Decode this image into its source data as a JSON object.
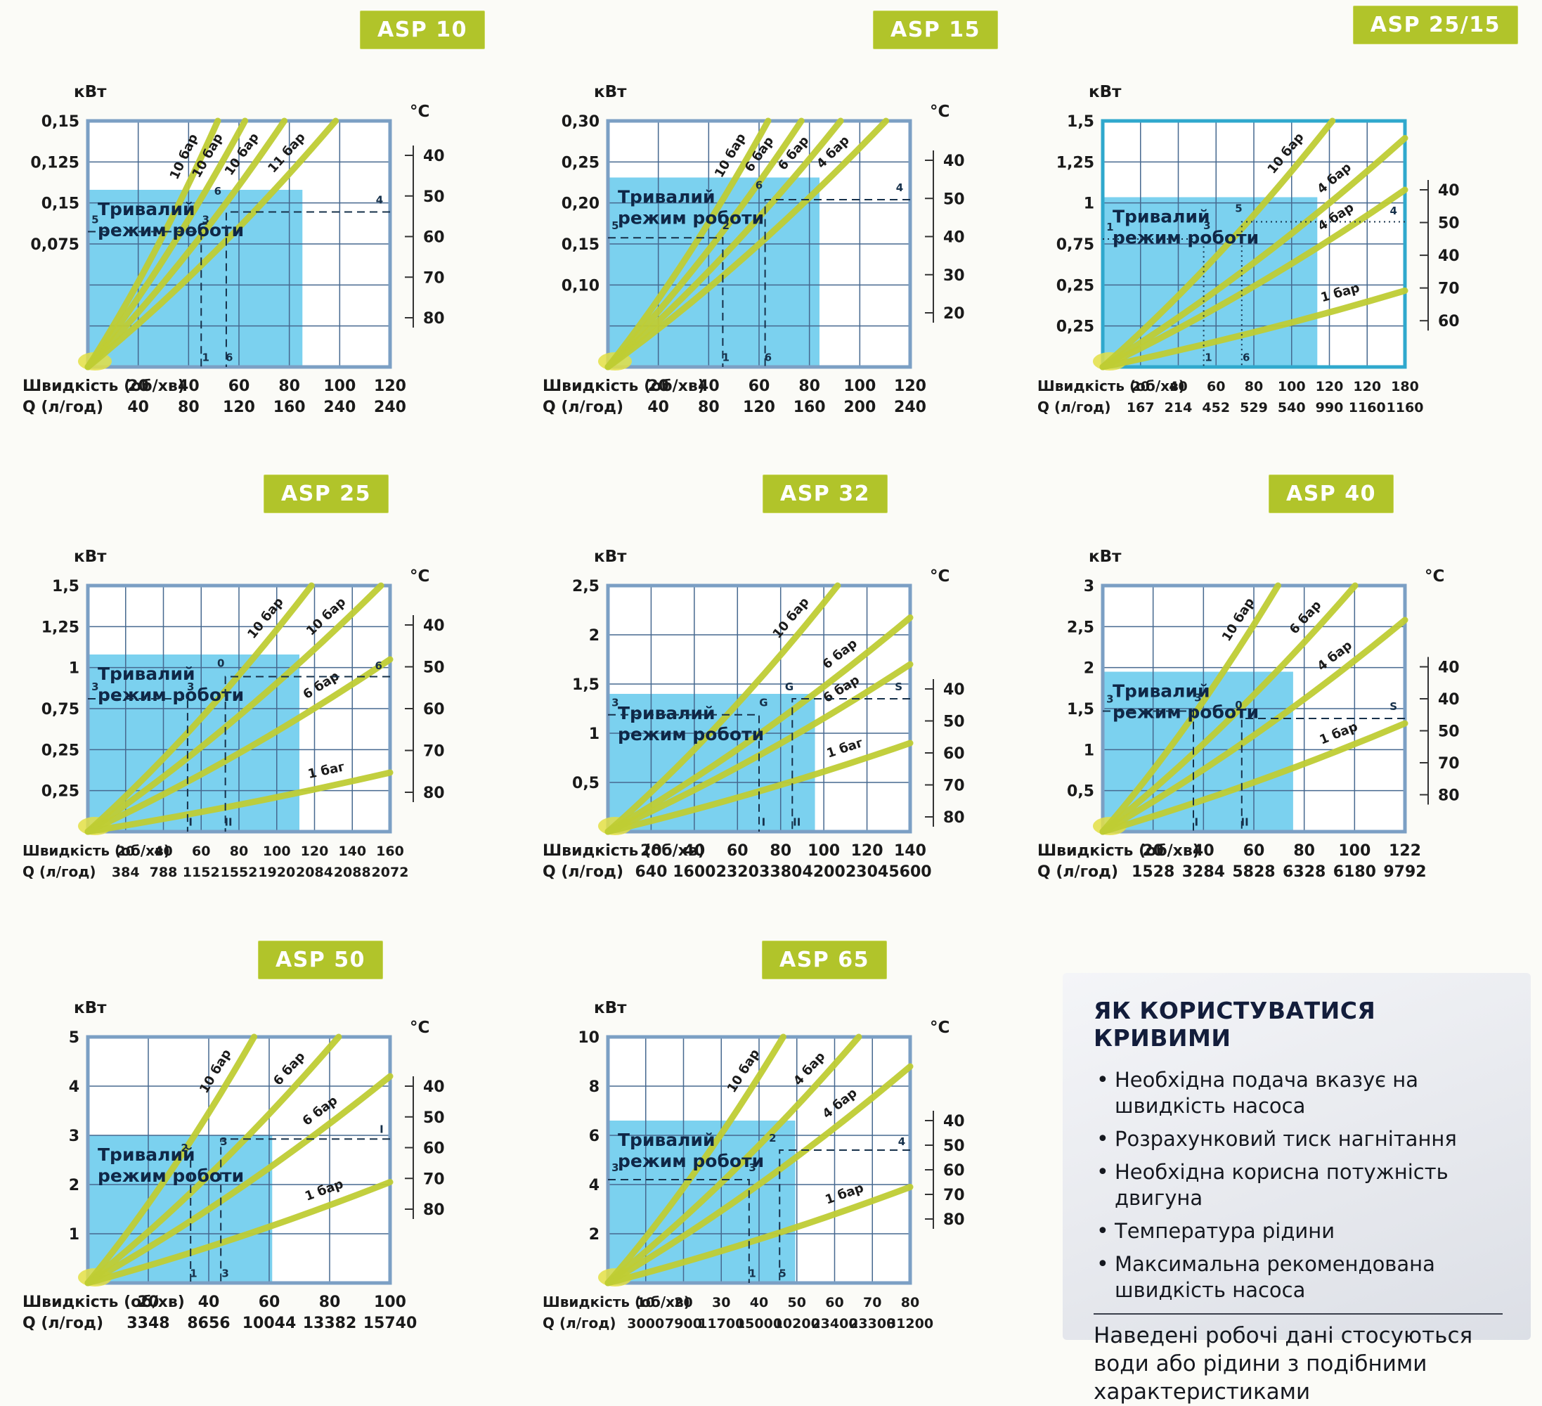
{
  "colors": {
    "region": "#7bd1ef",
    "grid": "#46688f",
    "curve": "#bfcc34",
    "dash": "#16304a",
    "text": "#1a1a1a",
    "badge": "#b1c42a"
  },
  "axis": {
    "power_unit": "кВт",
    "temp_unit": "°C",
    "speed_label": "Швидкість (об/хв)",
    "flow_label": "Q (л/год)",
    "region_label_line1": "Тривалий",
    "region_label_line2": "режим роботи"
  },
  "chart_data": [
    {
      "type": "line",
      "title": "ASP 10",
      "border": "#7b9fc4",
      "dash_style": "dashed",
      "dense": false,
      "show_temp_unit": true,
      "rows": 6,
      "cols": 6,
      "y_ticks": [
        "0,15",
        "0,125",
        "0,15",
        "0,075"
      ],
      "speeds": [
        "20",
        "40",
        "60",
        "80",
        "100",
        "120"
      ],
      "flows": [
        "40",
        "80",
        "120",
        "160",
        "240",
        "240"
      ],
      "temps": [
        "40",
        "50",
        "60",
        "70",
        "80"
      ],
      "temp_start": 0.14,
      "temp_step": 0.165,
      "region": {
        "w": 0.71,
        "h": 0.72
      },
      "curves": [
        {
          "label": "10 бар",
          "x": 0.43,
          "y": 0
        },
        {
          "label": "10 бар",
          "x": 0.52,
          "y": 0
        },
        {
          "label": "10 бар",
          "x": 0.65,
          "y": 0
        },
        {
          "label": "11 бар",
          "x": 0.82,
          "y": 0
        }
      ],
      "dashes": [
        [
          [
            0,
            0.45
          ],
          [
            0.375,
            0.45
          ],
          [
            0.375,
            1
          ]
        ],
        [
          [
            1,
            0.37
          ],
          [
            0.458,
            0.37
          ],
          [
            0.458,
            1
          ]
        ]
      ],
      "notes": [
        {
          "t": "5",
          "x": 0.012,
          "y": 0.415
        },
        {
          "t": "3",
          "x": 0.39,
          "y": 0.415
        },
        {
          "t": "6",
          "x": 0.43,
          "y": 0.3
        },
        {
          "t": "4",
          "x": 0.965,
          "y": 0.335
        },
        {
          "t": "1",
          "x": 0.39,
          "y": 0.975
        },
        {
          "t": "6",
          "x": 0.468,
          "y": 0.975
        }
      ]
    },
    {
      "type": "line",
      "title": "ASP 15",
      "border": "#7b9fc4",
      "dash_style": "dashed",
      "dense": false,
      "show_temp_unit": true,
      "rows": 6,
      "cols": 6,
      "y_ticks": [
        "0,30",
        "0,25",
        "0,20",
        "0,15",
        "0,10"
      ],
      "speeds": [
        "20",
        "40",
        "60",
        "80",
        "100",
        "120"
      ],
      "flows": [
        "40",
        "80",
        "120",
        "160",
        "200",
        "240"
      ],
      "temps": [
        "40",
        "50",
        "40",
        "30",
        "20"
      ],
      "temp_start": 0.16,
      "temp_step": 0.155,
      "region": {
        "w": 0.7,
        "h": 0.77
      },
      "curves": [
        {
          "label": "10 бар",
          "x": 0.53,
          "y": 0
        },
        {
          "label": "6 бар",
          "x": 0.64,
          "y": 0
        },
        {
          "label": "6 бар",
          "x": 0.77,
          "y": 0
        },
        {
          "label": "4 бар",
          "x": 0.92,
          "y": 0
        }
      ],
      "dashes": [
        [
          [
            0,
            0.475
          ],
          [
            0.38,
            0.475
          ],
          [
            0.38,
            1
          ]
        ],
        [
          [
            1,
            0.32
          ],
          [
            0.52,
            0.32
          ],
          [
            0.52,
            1
          ]
        ]
      ],
      "notes": [
        {
          "t": "5",
          "x": 0.012,
          "y": 0.44
        },
        {
          "t": "2",
          "x": 0.39,
          "y": 0.44
        },
        {
          "t": "6",
          "x": 0.5,
          "y": 0.275
        },
        {
          "t": "4",
          "x": 0.965,
          "y": 0.285
        },
        {
          "t": "1",
          "x": 0.39,
          "y": 0.975
        },
        {
          "t": "6",
          "x": 0.53,
          "y": 0.975
        }
      ]
    },
    {
      "type": "line",
      "title": "ASP 25/15",
      "border": "#2fa8cd",
      "dash_style": "dotted",
      "dense": true,
      "show_temp_unit": false,
      "rows": 6,
      "cols": 8,
      "y_ticks": [
        "1,5",
        "1,25",
        "1",
        "0,75",
        "0,25",
        "0,25"
      ],
      "speeds": [
        "20",
        "40",
        "60",
        "80",
        "100",
        "120",
        "120",
        "180"
      ],
      "flows": [
        "167",
        "214",
        "452",
        "529",
        "540",
        "990",
        "1160",
        "1160"
      ],
      "temps": [
        "40",
        "50",
        "40",
        "70",
        "60"
      ],
      "temp_start": 0.28,
      "temp_step": 0.133,
      "region": {
        "w": 0.71,
        "h": 0.69
      },
      "curves": [
        {
          "label": "10 бар",
          "x": 0.76,
          "y": 0
        },
        {
          "label": "4 бар",
          "x": 1,
          "y": 0.07
        },
        {
          "label": "4 бар",
          "x": 1,
          "y": 0.28
        },
        {
          "label": "1 бар",
          "x": 1,
          "y": 0.69
        }
      ],
      "dashes": [
        [
          [
            0,
            0.48
          ],
          [
            0.334,
            0.48
          ],
          [
            0.334,
            1
          ]
        ],
        [
          [
            1,
            0.41
          ],
          [
            0.46,
            0.41
          ],
          [
            0.46,
            1
          ]
        ]
      ],
      "notes": [
        {
          "t": "1",
          "x": 0.012,
          "y": 0.445
        },
        {
          "t": "3",
          "x": 0.345,
          "y": 0.44
        },
        {
          "t": "5",
          "x": 0.45,
          "y": 0.37
        },
        {
          "t": "4",
          "x": 0.962,
          "y": 0.38
        },
        {
          "t": "1",
          "x": 0.35,
          "y": 0.975
        },
        {
          "t": "6",
          "x": 0.475,
          "y": 0.975
        }
      ]
    },
    {
      "type": "line",
      "title": "ASP 25",
      "border": "#7b9fc4",
      "dash_style": "dashed",
      "dense": true,
      "show_temp_unit": true,
      "rows": 6,
      "cols": 8,
      "y_ticks": [
        "1,5",
        "1,25",
        "1",
        "0,75",
        "0,25",
        "0,25"
      ],
      "speeds": [
        "20",
        "40",
        "60",
        "80",
        "100",
        "120",
        "140",
        "160"
      ],
      "flows": [
        "384",
        "788",
        "1152",
        "1552",
        "1920",
        "2084",
        "2088",
        "2072"
      ],
      "temps": [
        "40",
        "50",
        "60",
        "70",
        "80"
      ],
      "temp_start": 0.16,
      "temp_step": 0.17,
      "region": {
        "w": 0.7,
        "h": 0.72
      },
      "curves": [
        {
          "label": "10 бар",
          "x": 0.74,
          "y": 0
        },
        {
          "label": "10 бар",
          "x": 0.97,
          "y": 0
        },
        {
          "label": "6 бар",
          "x": 1,
          "y": 0.3
        },
        {
          "label": "1 баг",
          "x": 1,
          "y": 0.76
        }
      ],
      "dashes": [
        [
          [
            0,
            0.46
          ],
          [
            0.33,
            0.46
          ],
          [
            0.33,
            1
          ]
        ],
        [
          [
            1,
            0.37
          ],
          [
            0.455,
            0.37
          ],
          [
            0.455,
            1
          ]
        ]
      ],
      "notes": [
        {
          "t": "3",
          "x": 0.012,
          "y": 0.425
        },
        {
          "t": "3",
          "x": 0.34,
          "y": 0.425
        },
        {
          "t": "0",
          "x": 0.44,
          "y": 0.33
        },
        {
          "t": "6",
          "x": 0.962,
          "y": 0.34
        },
        {
          "t": "I",
          "x": 0.34,
          "y": 0.975
        },
        {
          "t": "II",
          "x": 0.465,
          "y": 0.975
        }
      ]
    },
    {
      "type": "line",
      "title": "ASP 32",
      "border": "#7b9fc4",
      "dash_style": "dashed",
      "dense": false,
      "show_temp_unit": true,
      "rows": 5,
      "cols": 7,
      "y_ticks": [
        "2,5",
        "2",
        "1,5",
        "1",
        "0,5"
      ],
      "speeds": [
        "20",
        "40",
        "60",
        "80",
        "100",
        "120",
        "140"
      ],
      "flows": [
        "640",
        "1600",
        "2320",
        "3380",
        "4200",
        "2304",
        "5600"
      ],
      "temps": [
        "40",
        "50",
        "60",
        "70",
        "80"
      ],
      "temp_start": 0.42,
      "temp_step": 0.13,
      "region": {
        "w": 0.685,
        "h": 0.56
      },
      "curves": [
        {
          "label": "10 бар",
          "x": 0.76,
          "y": 0
        },
        {
          "label": "6 бар",
          "x": 1,
          "y": 0.13
        },
        {
          "label": "6 бар",
          "x": 1,
          "y": 0.32
        },
        {
          "label": "1 баг",
          "x": 1,
          "y": 0.64
        }
      ],
      "dashes": [
        [
          [
            0,
            0.525
          ],
          [
            0.5,
            0.525
          ],
          [
            0.5,
            1
          ]
        ],
        [
          [
            1,
            0.46
          ],
          [
            0.61,
            0.46
          ],
          [
            0.61,
            1
          ]
        ]
      ],
      "notes": [
        {
          "t": "3",
          "x": 0.012,
          "y": 0.49
        },
        {
          "t": "G",
          "x": 0.515,
          "y": 0.49
        },
        {
          "t": "G",
          "x": 0.6,
          "y": 0.425
        },
        {
          "t": "S",
          "x": 0.962,
          "y": 0.425
        },
        {
          "t": "I",
          "x": 0.515,
          "y": 0.975
        },
        {
          "t": "II",
          "x": 0.625,
          "y": 0.975
        }
      ]
    },
    {
      "type": "line",
      "title": "ASP 40",
      "border": "#7b9fc4",
      "dash_style": "dashed",
      "dense": false,
      "show_temp_unit": true,
      "rows": 6,
      "cols": 6,
      "y_ticks": [
        "3",
        "2,5",
        "2",
        "1,5",
        "1",
        "0,5"
      ],
      "speeds": [
        "20",
        "40",
        "60",
        "80",
        "100",
        "122"
      ],
      "flows": [
        "1528",
        "3284",
        "5828",
        "6328",
        "6180",
        "9792"
      ],
      "temps": [
        "40",
        "40",
        "50",
        "70",
        "80"
      ],
      "temp_start": 0.33,
      "temp_step": 0.13,
      "region": {
        "w": 0.63,
        "h": 0.65
      },
      "curves": [
        {
          "label": "10 бар",
          "x": 0.58,
          "y": 0
        },
        {
          "label": "6 бар",
          "x": 0.835,
          "y": 0
        },
        {
          "label": "4 бар",
          "x": 1,
          "y": 0.14
        },
        {
          "label": "1 бар",
          "x": 1,
          "y": 0.56
        }
      ],
      "dashes": [
        [
          [
            0,
            0.51
          ],
          [
            0.3,
            0.51
          ],
          [
            0.3,
            1
          ]
        ],
        [
          [
            1,
            0.54
          ],
          [
            0.46,
            0.54
          ],
          [
            0.46,
            1
          ]
        ]
      ],
      "notes": [
        {
          "t": "3",
          "x": 0.012,
          "y": 0.475
        },
        {
          "t": "3",
          "x": 0.315,
          "y": 0.47
        },
        {
          "t": "0",
          "x": 0.45,
          "y": 0.5
        },
        {
          "t": "S",
          "x": 0.962,
          "y": 0.505
        },
        {
          "t": "I",
          "x": 0.31,
          "y": 0.975
        },
        {
          "t": "II",
          "x": 0.47,
          "y": 0.975
        }
      ]
    },
    {
      "type": "line",
      "title": "ASP 50",
      "border": "#7b9fc4",
      "dash_style": "dashed",
      "dense": false,
      "show_temp_unit": true,
      "rows": 5,
      "cols": 5,
      "y_ticks": [
        "5",
        "4",
        "3",
        "2",
        "1"
      ],
      "speeds": [
        "20",
        "40",
        "60",
        "80",
        "100"
      ],
      "flows": [
        "3348",
        "8656",
        "10044",
        "13382",
        "15740"
      ],
      "temps": [
        "40",
        "50",
        "60",
        "70",
        "80"
      ],
      "temp_start": 0.2,
      "temp_step": 0.125,
      "region": {
        "w": 0.61,
        "h": 0.6
      },
      "curves": [
        {
          "label": "10 бар",
          "x": 0.55,
          "y": 0
        },
        {
          "label": "6 бар",
          "x": 0.83,
          "y": 0
        },
        {
          "label": "6 бар",
          "x": 1,
          "y": 0.16
        },
        {
          "label": "1 бар",
          "x": 1,
          "y": 0.59
        }
      ],
      "dashes": [
        [
          [
            0.34,
            0.5
          ],
          [
            0.34,
            1
          ]
        ],
        [
          [
            1,
            0.415
          ],
          [
            0.44,
            0.415
          ],
          [
            0.44,
            1
          ]
        ]
      ],
      "notes": [
        {
          "t": "2",
          "x": 0.32,
          "y": 0.465
        },
        {
          "t": "3",
          "x": 0.45,
          "y": 0.44
        },
        {
          "t": "1",
          "x": 0.35,
          "y": 0.975
        },
        {
          "t": "3",
          "x": 0.455,
          "y": 0.975
        },
        {
          "t": "I",
          "x": 0.972,
          "y": 0.39
        }
      ]
    },
    {
      "type": "line",
      "title": "ASP 65",
      "border": "#7b9fc4",
      "dash_style": "dashed",
      "dense": true,
      "show_temp_unit": true,
      "rows": 5,
      "cols": 8,
      "y_ticks": [
        "10",
        "8",
        "6",
        "4",
        "2"
      ],
      "speeds": [
        "10",
        "20",
        "30",
        "40",
        "50",
        "60",
        "70",
        "80"
      ],
      "flows": [
        "3000",
        "7900",
        "11700",
        "15000",
        "10200",
        "23400",
        "23300",
        "31200"
      ],
      "temps": [
        "40",
        "50",
        "60",
        "70",
        "80"
      ],
      "temp_start": 0.34,
      "temp_step": 0.1,
      "region": {
        "w": 0.62,
        "h": 0.66
      },
      "curves": [
        {
          "label": "10 бар",
          "x": 0.58,
          "y": 0
        },
        {
          "label": "4 бар",
          "x": 0.83,
          "y": 0
        },
        {
          "label": "4 бар",
          "x": 1,
          "y": 0.12
        },
        {
          "label": "1 бар",
          "x": 1,
          "y": 0.61
        }
      ],
      "dashes": [
        [
          [
            0,
            0.58
          ],
          [
            0.467,
            0.58
          ],
          [
            0.467,
            1
          ]
        ],
        [
          [
            1,
            0.46
          ],
          [
            0.568,
            0.46
          ],
          [
            0.568,
            1
          ]
        ]
      ],
      "notes": [
        {
          "t": "3",
          "x": 0.012,
          "y": 0.545
        },
        {
          "t": "3",
          "x": 0.478,
          "y": 0.545
        },
        {
          "t": "2",
          "x": 0.545,
          "y": 0.425
        },
        {
          "t": "4",
          "x": 0.972,
          "y": 0.44
        },
        {
          "t": "1",
          "x": 0.478,
          "y": 0.975
        },
        {
          "t": "5",
          "x": 0.578,
          "y": 0.975
        }
      ]
    }
  ],
  "info_box": {
    "title": "ЯК КОРИСТУВАТИСЯ КРИВИМИ",
    "bullets": [
      "Необхідна подача вказує на швидкість насоса",
      "Розрахунковий тиск нагнітання",
      "Необхідна корисна потужність двигуна",
      "Температура рідини",
      "Максимальна рекомендована швидкість насоса"
    ],
    "footer": "Наведені робочі дані стосуються води або рідини з подібними характеристиками"
  }
}
